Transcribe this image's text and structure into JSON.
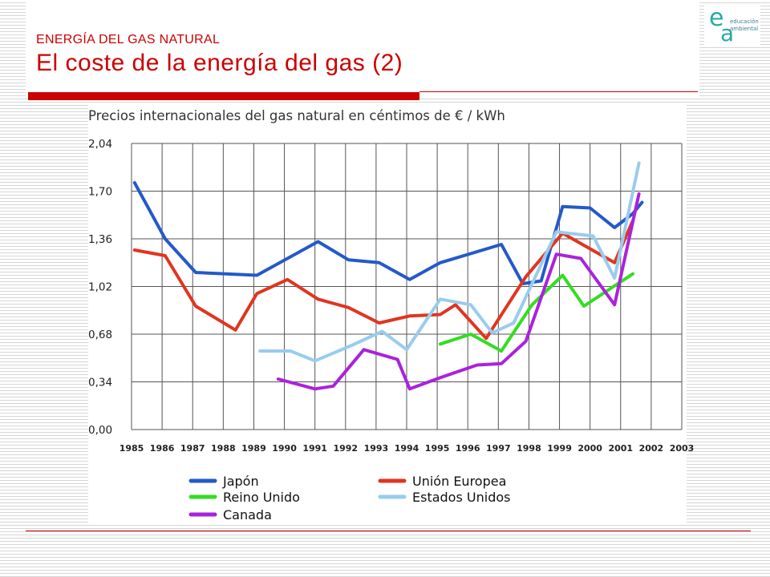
{
  "slide": {
    "supertitle": "ENERGÍA DEL GAS NATURAL",
    "title": "El coste de la energía del gas (2)"
  },
  "logo": {
    "letter_e": "e",
    "letter_a": "a",
    "line1": "educación",
    "line2": "ambiental"
  },
  "colors": {
    "accent": "#cc0000",
    "logo": "#2aa8a8"
  },
  "chart_data": {
    "type": "line",
    "title": "Precios internacionales del gas natural en céntimos de € / kWh",
    "xlabel": "",
    "ylabel": "",
    "categories": [
      "1985",
      "1986",
      "1987",
      "1988",
      "1989",
      "1990",
      "1991",
      "1992",
      "1993",
      "1994",
      "1995",
      "1996",
      "1997",
      "1998",
      "1999",
      "2000",
      "2001",
      "2002",
      "2003"
    ],
    "y_ticks": [
      "0,00",
      "0,34",
      "0,68",
      "1,02",
      "1,36",
      "1,70",
      "2,04"
    ],
    "ylim": [
      0,
      2.04
    ],
    "grid": true,
    "legend_position": "bottom",
    "series": [
      {
        "name": "Japón",
        "color": "#2459c9",
        "points": [
          [
            1985.1,
            1.76
          ],
          [
            1986.1,
            1.36
          ],
          [
            1987.1,
            1.12
          ],
          [
            1989.1,
            1.1
          ],
          [
            1991.1,
            1.34
          ],
          [
            1992.1,
            1.21
          ],
          [
            1993.1,
            1.19
          ],
          [
            1994.1,
            1.07
          ],
          [
            1995.1,
            1.19
          ],
          [
            1997.1,
            1.32
          ],
          [
            1997.8,
            1.04
          ],
          [
            1998.4,
            1.06
          ],
          [
            1999.1,
            1.59
          ],
          [
            2000.0,
            1.58
          ],
          [
            2000.8,
            1.44
          ],
          [
            2001.4,
            1.54
          ],
          [
            2001.7,
            1.62
          ]
        ]
      },
      {
        "name": "Unión Europea",
        "color": "#e03520",
        "points": [
          [
            1985.1,
            1.28
          ],
          [
            1986.1,
            1.24
          ],
          [
            1987.1,
            0.88
          ],
          [
            1988.4,
            0.71
          ],
          [
            1989.1,
            0.97
          ],
          [
            1990.1,
            1.07
          ],
          [
            1991.1,
            0.93
          ],
          [
            1992.1,
            0.87
          ],
          [
            1993.1,
            0.76
          ],
          [
            1994.1,
            0.81
          ],
          [
            1995.1,
            0.82
          ],
          [
            1995.6,
            0.89
          ],
          [
            1996.6,
            0.65
          ],
          [
            1997.9,
            1.09
          ],
          [
            1999.1,
            1.4
          ],
          [
            2000.8,
            1.19
          ],
          [
            2001.4,
            1.49
          ]
        ]
      },
      {
        "name": "Reino Unido",
        "color": "#33dd22",
        "points": [
          [
            1995.1,
            0.61
          ],
          [
            1996.1,
            0.68
          ],
          [
            1997.1,
            0.56
          ],
          [
            1998.1,
            0.89
          ],
          [
            1999.1,
            1.1
          ],
          [
            1999.8,
            0.88
          ],
          [
            2001.4,
            1.11
          ]
        ]
      },
      {
        "name": "Estados Unidos",
        "color": "#99ccee",
        "points": [
          [
            1989.2,
            0.56
          ],
          [
            1990.2,
            0.56
          ],
          [
            1991.0,
            0.49
          ],
          [
            1992.2,
            0.6
          ],
          [
            1993.2,
            0.7
          ],
          [
            1994.0,
            0.57
          ],
          [
            1995.1,
            0.93
          ],
          [
            1996.1,
            0.89
          ],
          [
            1996.8,
            0.69
          ],
          [
            1997.5,
            0.76
          ],
          [
            1998.9,
            1.41
          ],
          [
            2000.1,
            1.38
          ],
          [
            2000.8,
            1.08
          ],
          [
            2001.6,
            1.9
          ]
        ]
      },
      {
        "name": "Canada",
        "color": "#aa22dd",
        "points": [
          [
            1989.8,
            0.36
          ],
          [
            1991.0,
            0.29
          ],
          [
            1991.6,
            0.31
          ],
          [
            1992.6,
            0.57
          ],
          [
            1993.7,
            0.5
          ],
          [
            1994.1,
            0.29
          ],
          [
            1995.1,
            0.37
          ],
          [
            1996.3,
            0.46
          ],
          [
            1997.1,
            0.47
          ],
          [
            1997.9,
            0.63
          ],
          [
            1998.9,
            1.25
          ],
          [
            1999.7,
            1.22
          ],
          [
            2000.8,
            0.89
          ],
          [
            2001.6,
            1.68
          ]
        ]
      }
    ]
  }
}
